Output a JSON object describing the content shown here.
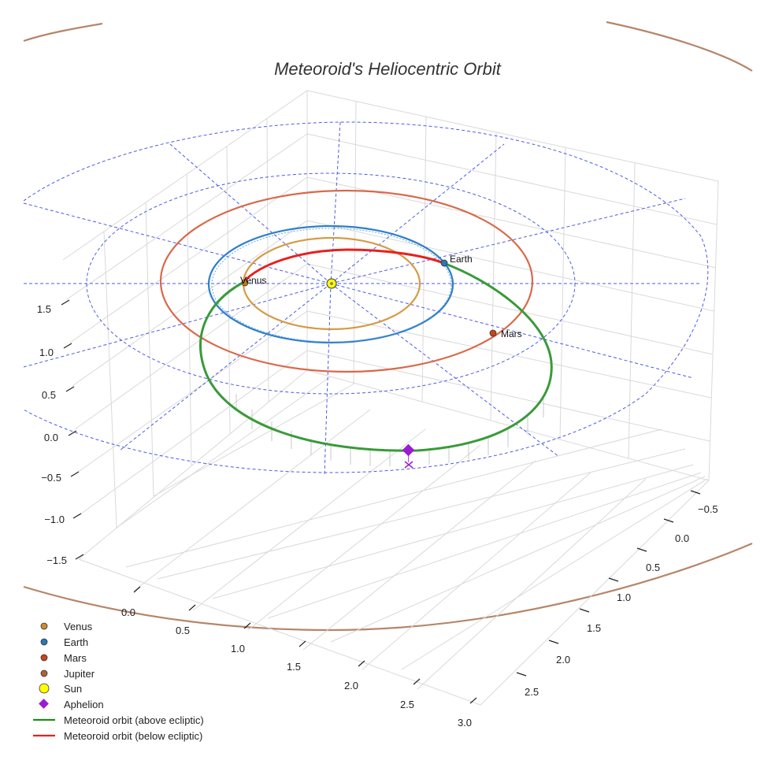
{
  "chart_data": {
    "type": "3d-line",
    "title": "Meteoroid's Heliocentric Orbit",
    "zticks": [
      "1.5",
      "1.0",
      "0.5",
      "0.0",
      "−0.5",
      "−1.0",
      "−1.5"
    ],
    "xticks": [
      "0.0",
      "0.5",
      "1.0",
      "1.5",
      "2.0",
      "2.5",
      "3.0"
    ],
    "yticks": [
      "−0.5",
      "0.0",
      "0.5",
      "1.0",
      "1.5",
      "2.0",
      "2.5"
    ],
    "planet_orbits": [
      {
        "name": "Venus",
        "radius_au": 0.72,
        "color": "#d59b47"
      },
      {
        "name": "Earth",
        "radius_au": 1.0,
        "color": "#2f7fc9"
      },
      {
        "name": "Mars",
        "radius_au": 1.52,
        "color": "#d9694a"
      },
      {
        "name": "Jupiter",
        "radius_au": 5.2,
        "color": "#b5866a"
      }
    ],
    "ecliptic_reference_circles_au": [
      2.0,
      2.6
    ],
    "planet_labels": [
      "Venus",
      "Earth",
      "Mars"
    ],
    "meteoroid_orbit": {
      "aphelion_marker": "Aphelion",
      "above_color": "#3a9a3a",
      "below_color": "#e8201c"
    },
    "legend": [
      {
        "label": "Venus",
        "kind": "dot",
        "color": "#d08a2e"
      },
      {
        "label": "Earth",
        "kind": "dot",
        "color": "#2a77b8"
      },
      {
        "label": "Mars",
        "kind": "dot",
        "color": "#c8441d"
      },
      {
        "label": "Jupiter",
        "kind": "dot",
        "color": "#b0603a"
      },
      {
        "label": "Sun",
        "kind": "sun",
        "color": "#ffff00"
      },
      {
        "label": "Aphelion",
        "kind": "diamond",
        "color": "#9b1bd4"
      },
      {
        "label": "Meteoroid orbit (above ecliptic)",
        "kind": "line",
        "color": "#1e8c1e"
      },
      {
        "label": "Meteoroid orbit (below ecliptic)",
        "kind": "line",
        "color": "#e8201c"
      }
    ]
  }
}
